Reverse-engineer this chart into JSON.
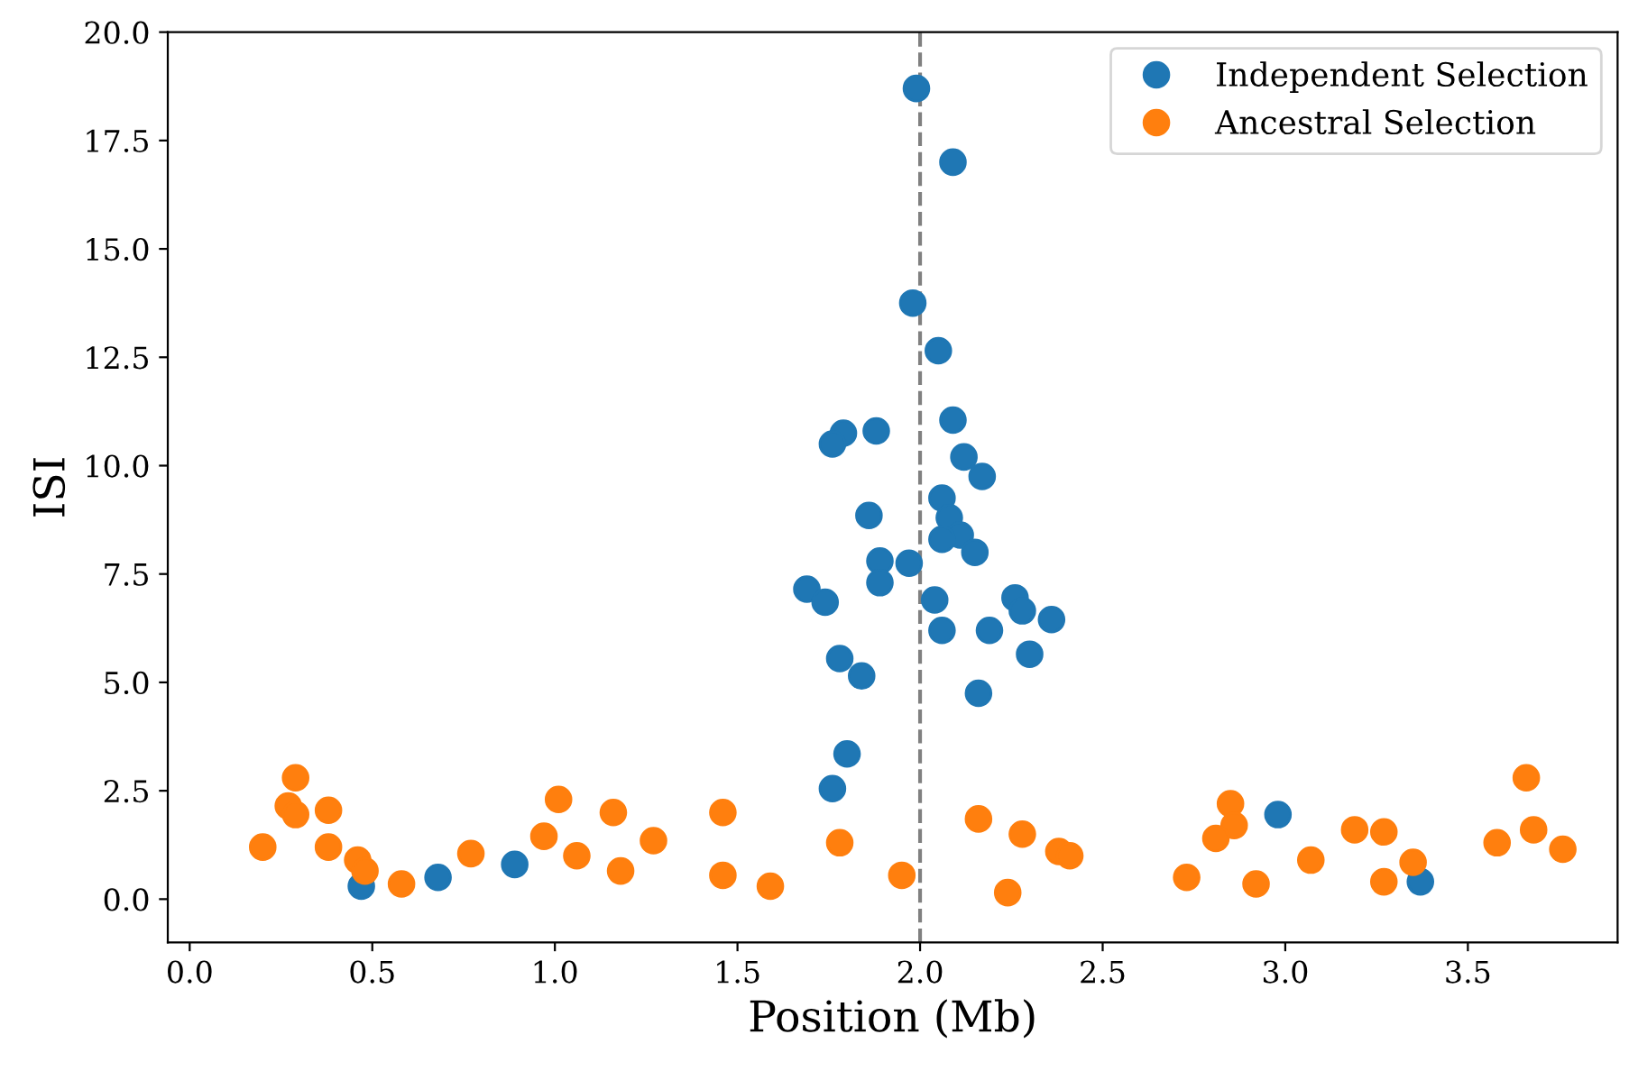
{
  "chart_data": {
    "type": "scatter",
    "xlabel": "Position (Mb)",
    "ylabel": "ISI",
    "xlim": [
      -0.06,
      3.91
    ],
    "ylim": [
      -1.0,
      20.0
    ],
    "xticks": [
      {
        "value": 0,
        "label": "0.0"
      },
      {
        "value": 0.5,
        "label": "0.5"
      },
      {
        "value": 1,
        "label": "1.0"
      },
      {
        "value": 1.5,
        "label": "1.5"
      },
      {
        "value": 2,
        "label": "2.0"
      },
      {
        "value": 2.5,
        "label": "2.5"
      },
      {
        "value": 3,
        "label": "3.0"
      },
      {
        "value": 3.5,
        "label": "3.5"
      }
    ],
    "yticks": [
      {
        "value": 0,
        "label": "0.0"
      },
      2.5,
      {
        "value": 5,
        "label": "5.0"
      },
      7.5,
      {
        "value": 10,
        "label": "10.0"
      },
      12.5,
      {
        "value": 15,
        "label": "15.0"
      },
      17.5,
      {
        "value": 20,
        "label": "20.0"
      }
    ],
    "marker": "circle",
    "legend": "top right",
    "grid": false,
    "ref_lines": [
      {
        "axis": "x",
        "value": 2.0,
        "color": "#808080",
        "line_style": "dashed"
      }
    ],
    "series": [
      {
        "name": "Independent Selection",
        "color": "#1f77b4",
        "x": [
          1.99,
          2.09,
          1.98,
          2.05,
          2.09,
          2.12,
          2.17,
          1.88,
          1.79,
          1.76,
          2.06,
          2.08,
          1.86,
          2.11,
          2.06,
          2.15,
          1.89,
          1.97,
          1.89,
          1.69,
          1.74,
          2.04,
          2.26,
          2.28,
          2.36,
          2.06,
          2.19,
          2.3,
          1.78,
          1.84,
          2.16,
          1.8,
          1.76,
          0.47,
          0.68,
          0.89,
          2.98,
          3.37
        ],
        "values": [
          18.7,
          17.0,
          13.75,
          12.65,
          11.05,
          10.2,
          9.75,
          10.8,
          10.75,
          10.5,
          9.25,
          8.8,
          8.85,
          8.4,
          8.3,
          8.0,
          7.8,
          7.75,
          7.3,
          7.15,
          6.85,
          6.9,
          6.95,
          6.65,
          6.45,
          6.2,
          6.2,
          5.65,
          5.55,
          5.15,
          4.75,
          3.35,
          2.55,
          0.3,
          0.5,
          0.8,
          1.95,
          0.4
        ]
      },
      {
        "name": "Ancestral Selection",
        "color": "#ff7f0e",
        "x": [
          0.2,
          0.29,
          0.27,
          0.29,
          0.38,
          0.38,
          0.46,
          0.48,
          0.58,
          0.77,
          0.97,
          1.01,
          1.06,
          1.16,
          1.18,
          1.27,
          1.46,
          1.46,
          1.59,
          1.78,
          1.95,
          2.16,
          2.28,
          2.38,
          2.41,
          2.24,
          2.73,
          2.85,
          2.86,
          2.81,
          2.92,
          3.07,
          3.19,
          3.27,
          3.27,
          3.35,
          3.58,
          3.66,
          3.68,
          3.76
        ],
        "values": [
          1.2,
          2.8,
          2.15,
          1.95,
          2.05,
          1.2,
          0.9,
          0.65,
          0.35,
          1.05,
          1.45,
          2.3,
          1.0,
          2.0,
          0.65,
          1.35,
          2.0,
          0.55,
          0.3,
          1.3,
          0.55,
          1.85,
          1.5,
          1.1,
          1.0,
          0.15,
          0.5,
          2.2,
          1.7,
          1.4,
          0.35,
          0.9,
          1.6,
          1.55,
          0.4,
          0.85,
          1.3,
          2.8,
          1.6,
          1.15
        ]
      }
    ]
  }
}
